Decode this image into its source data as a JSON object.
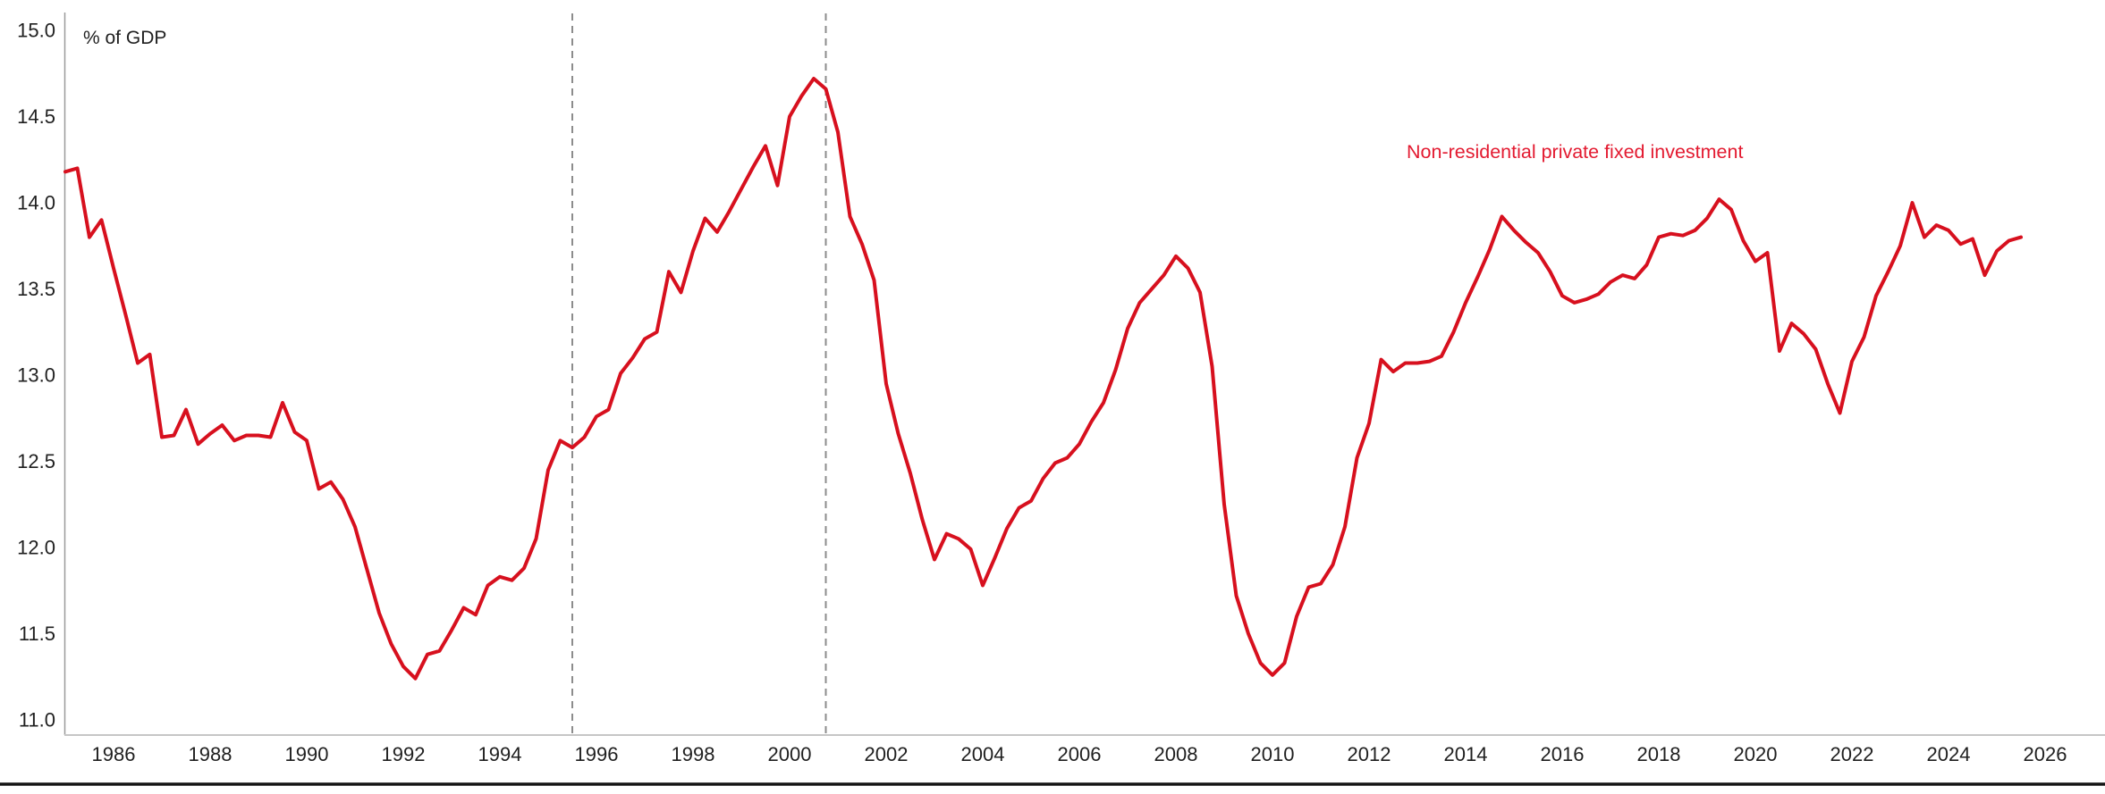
{
  "chart": {
    "colors": {
      "line": "#d7101e",
      "series_label": "#e31a30",
      "tick_text": "#1f1f1f",
      "y_axis": "#9a9a9a",
      "x_axis": "#c6c6c6",
      "event_line": "#8c8c8c",
      "bottom_rule": "#141414",
      "background": "#ffffff"
    }
  },
  "chart_data": {
    "type": "line",
    "title": "",
    "ylabel": "% of GDP",
    "xlabel": "",
    "grid": false,
    "legend_position": "inline-top-right",
    "frequency": "quarterly",
    "x_start": 1985.0,
    "x_step": 0.25,
    "ylim": [
      11.0,
      15.0
    ],
    "xlim": [
      1985.0,
      2027.2
    ],
    "y_ticks": [
      15.0,
      14.5,
      14.0,
      13.5,
      13.0,
      12.5,
      12.0,
      11.5,
      11.0
    ],
    "x_ticks": [
      1986,
      1988,
      1990,
      1992,
      1994,
      1996,
      1998,
      2000,
      2002,
      2004,
      2006,
      2008,
      2010,
      2012,
      2014,
      2016,
      2018,
      2020,
      2022,
      2024,
      2026
    ],
    "vlines": [
      1995.5,
      2000.75
    ],
    "series": [
      {
        "name": "Non-residential private fixed investment",
        "values": [
          14.18,
          14.2,
          13.8,
          13.9,
          13.62,
          13.35,
          13.07,
          13.12,
          12.64,
          12.65,
          12.8,
          12.6,
          12.66,
          12.71,
          12.62,
          12.65,
          12.65,
          12.64,
          12.84,
          12.67,
          12.62,
          12.34,
          12.38,
          12.28,
          12.12,
          11.87,
          11.62,
          11.44,
          11.31,
          11.24,
          11.38,
          11.4,
          11.52,
          11.65,
          11.61,
          11.78,
          11.83,
          11.81,
          11.88,
          12.05,
          12.45,
          12.62,
          12.58,
          12.64,
          12.76,
          12.8,
          13.01,
          13.1,
          13.21,
          13.25,
          13.6,
          13.48,
          13.72,
          13.91,
          13.83,
          13.95,
          14.08,
          14.21,
          14.33,
          14.1,
          14.5,
          14.62,
          14.72,
          14.66,
          14.41,
          13.92,
          13.76,
          13.55,
          12.95,
          12.66,
          12.43,
          12.16,
          11.93,
          12.08,
          12.05,
          11.99,
          11.78,
          11.94,
          12.11,
          12.23,
          12.27,
          12.4,
          12.49,
          12.52,
          12.6,
          12.73,
          12.84,
          13.03,
          13.27,
          13.42,
          13.5,
          13.58,
          13.69,
          13.62,
          13.48,
          13.05,
          12.25,
          11.72,
          11.5,
          11.33,
          11.26,
          11.33,
          11.6,
          11.77,
          11.79,
          11.9,
          12.12,
          12.52,
          12.72,
          13.09,
          13.02,
          13.07,
          13.07,
          13.08,
          13.11,
          13.25,
          13.42,
          13.57,
          13.73,
          13.92,
          13.84,
          13.77,
          13.71,
          13.6,
          13.46,
          13.42,
          13.44,
          13.47,
          13.54,
          13.58,
          13.56,
          13.64,
          13.8,
          13.82,
          13.81,
          13.84,
          13.91,
          14.02,
          13.96,
          13.78,
          13.66,
          13.71,
          13.14,
          13.3,
          13.24,
          13.15,
          12.95,
          12.78,
          13.08,
          13.22,
          13.46,
          13.6,
          13.75,
          14.0,
          13.8,
          13.87,
          13.84,
          13.76,
          13.79,
          13.58,
          13.72,
          13.78,
          13.8
        ]
      }
    ]
  }
}
